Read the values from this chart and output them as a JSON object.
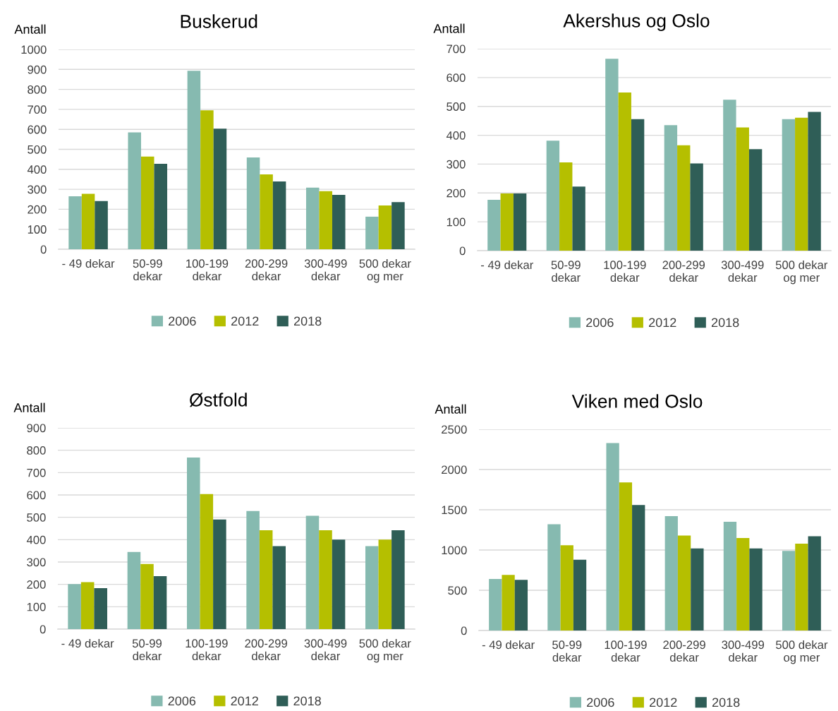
{
  "chart_data": [
    {
      "type": "bar",
      "title": "Buskerud",
      "ylabel": "Antall",
      "categories": [
        "- 49 dekar",
        "50-99\ndekar",
        "100-199\ndekar",
        "200-299\ndekar",
        "300-499\ndekar",
        "500 dekar\nog mer"
      ],
      "series": [
        {
          "name": "2006",
          "color": "#86bab0",
          "values": [
            265,
            585,
            893,
            459,
            308,
            163
          ]
        },
        {
          "name": "2012",
          "color": "#b5bf00",
          "values": [
            277,
            464,
            695,
            375,
            291,
            219
          ]
        },
        {
          "name": "2018",
          "color": "#2f5e57",
          "values": [
            241,
            428,
            603,
            339,
            272,
            236
          ]
        }
      ],
      "ylim": [
        0,
        1000
      ],
      "yticks": [
        0,
        100,
        200,
        300,
        400,
        500,
        600,
        700,
        800,
        900,
        1000
      ],
      "grid": "y",
      "legend": "bottom"
    },
    {
      "type": "bar",
      "title": "Akershus og Oslo",
      "ylabel": "Antall",
      "categories": [
        "- 49 dekar",
        "50-99\ndekar",
        "100-199\ndekar",
        "200-299\ndekar",
        "300-499\ndekar",
        "500 dekar\nog mer"
      ],
      "series": [
        {
          "name": "2006",
          "color": "#86bab0",
          "values": [
            176,
            381,
            665,
            435,
            523,
            456
          ]
        },
        {
          "name": "2012",
          "color": "#b5bf00",
          "values": [
            198,
            306,
            548,
            365,
            427,
            461
          ]
        },
        {
          "name": "2018",
          "color": "#2f5e57",
          "values": [
            198,
            222,
            456,
            302,
            352,
            481
          ]
        }
      ],
      "ylim": [
        0,
        700
      ],
      "yticks": [
        0,
        100,
        200,
        300,
        400,
        500,
        600,
        700
      ],
      "grid": "y",
      "legend": "bottom"
    },
    {
      "type": "bar",
      "title": "Østfold",
      "ylabel": "Antall",
      "categories": [
        "- 49 dekar",
        "50-99\ndekar",
        "100-199\ndekar",
        "200-299\ndekar",
        "300-499\ndekar",
        "500 dekar\nog mer"
      ],
      "series": [
        {
          "name": "2006",
          "color": "#86bab0",
          "values": [
            201,
            345,
            767,
            528,
            507,
            371
          ]
        },
        {
          "name": "2012",
          "color": "#b5bf00",
          "values": [
            210,
            291,
            604,
            442,
            442,
            400
          ]
        },
        {
          "name": "2018",
          "color": "#2f5e57",
          "values": [
            183,
            237,
            490,
            371,
            400,
            442
          ]
        }
      ],
      "ylim": [
        0,
        900
      ],
      "yticks": [
        0,
        100,
        200,
        300,
        400,
        500,
        600,
        700,
        800,
        900
      ],
      "grid": "y",
      "legend": "bottom"
    },
    {
      "type": "bar",
      "title": "Viken med Oslo",
      "ylabel": "Antall",
      "categories": [
        "- 49 dekar",
        "50-99\ndekar",
        "100-199\ndekar",
        "200-299\ndekar",
        "300-499\ndekar",
        "500 dekar\nog mer"
      ],
      "series": [
        {
          "name": "2006",
          "color": "#86bab0",
          "values": [
            640,
            1320,
            2330,
            1420,
            1350,
            990
          ]
        },
        {
          "name": "2012",
          "color": "#b5bf00",
          "values": [
            690,
            1060,
            1840,
            1180,
            1150,
            1080
          ]
        },
        {
          "name": "2018",
          "color": "#2f5e57",
          "values": [
            630,
            880,
            1560,
            1020,
            1020,
            1170
          ]
        }
      ],
      "ylim": [
        0,
        2500
      ],
      "yticks": [
        0,
        500,
        1000,
        1500,
        2000,
        2500
      ],
      "grid": "y",
      "legend": "bottom"
    }
  ]
}
